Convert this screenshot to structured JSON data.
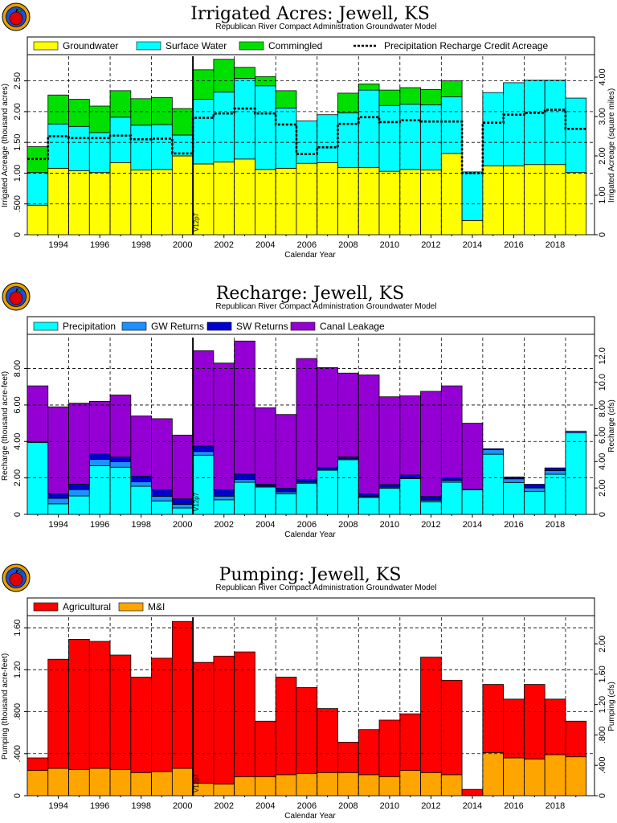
{
  "charts_common": {
    "subtitle": "Republican River Compact Administration Groundwater Model",
    "xlabel": "Calendar Year",
    "marker_label": "V12p7",
    "marker_year": 2000.5,
    "x_ticks": [
      1994,
      1996,
      1998,
      2000,
      2002,
      2004,
      2006,
      2008,
      2010,
      2012,
      2014,
      2016,
      2018
    ]
  },
  "chart_data": [
    {
      "type": "bar",
      "stacked": true,
      "title": "Irrigated Acres: Jewell, KS",
      "subtitle": "Republican River Compact Administration Groundwater Model",
      "xlabel": "Calendar Year",
      "ylabel": "Irrigated Acreage (thousand acres)",
      "ylabel_right": "Irrigated Acreage (square miles)",
      "ylim": [
        0,
        2.9
      ],
      "yticks": [
        0,
        0.5,
        1.0,
        1.5,
        2.0,
        2.5
      ],
      "ytick_labels": [
        "0",
        ".500",
        "1.00",
        "1.50",
        "2.00",
        "2.50"
      ],
      "y2lim": [
        0,
        4.53
      ],
      "y2ticks": [
        0,
        1,
        2,
        3,
        4
      ],
      "y2tick_labels": [
        "0",
        "1.00",
        "2.00",
        "3.00",
        "4.00"
      ],
      "grid": true,
      "legend_position": "top",
      "x": [
        1993,
        1994,
        1995,
        1996,
        1997,
        1998,
        1999,
        2000,
        2001,
        2002,
        2003,
        2004,
        2005,
        2006,
        2007,
        2008,
        2009,
        2010,
        2011,
        2012,
        2013,
        2014,
        2015,
        2016,
        2017,
        2018,
        2019
      ],
      "series": [
        {
          "name": "Groundwater",
          "color": "#ffff00",
          "values": [
            0.48,
            1.08,
            1.04,
            1.01,
            1.17,
            1.05,
            1.06,
            1.28,
            1.15,
            1.18,
            1.23,
            1.06,
            1.08,
            1.16,
            1.17,
            1.09,
            1.09,
            1.03,
            1.06,
            1.05,
            1.32,
            0.23,
            1.12,
            1.12,
            1.14,
            1.14,
            1.01
          ]
        },
        {
          "name": "Surface Water",
          "color": "#00ffff",
          "values": [
            0.53,
            0.72,
            0.72,
            0.65,
            0.74,
            0.73,
            0.73,
            0.34,
            1.05,
            1.14,
            1.31,
            1.36,
            0.98,
            0.69,
            0.78,
            0.89,
            1.26,
            1.07,
            1.06,
            1.06,
            0.92,
            0.79,
            1.19,
            1.35,
            1.37,
            1.37,
            1.21
          ]
        },
        {
          "name": "Commingled",
          "color": "#00e000",
          "values": [
            0.42,
            0.47,
            0.44,
            0.43,
            0.43,
            0.43,
            0.44,
            0.43,
            0.48,
            0.53,
            0.18,
            0.15,
            0.28,
            0,
            0,
            0.32,
            0.1,
            0.25,
            0.27,
            0.25,
            0.26,
            0,
            0,
            0,
            0,
            0,
            0
          ]
        }
      ],
      "line_series": [
        {
          "name": "Precipitation Recharge Credit Acreage",
          "style": "dotted",
          "values": [
            1.23,
            1.6,
            1.57,
            1.57,
            1.61,
            1.55,
            1.56,
            1.32,
            1.9,
            1.97,
            2.05,
            1.97,
            1.79,
            1.31,
            1.42,
            1.8,
            1.91,
            1.83,
            1.86,
            1.84,
            1.84,
            1.0,
            1.82,
            1.95,
            1.98,
            2.03,
            1.72
          ]
        }
      ]
    },
    {
      "type": "bar",
      "stacked": true,
      "title": "Recharge: Jewell, KS",
      "subtitle": "Republican River Compact Administration Groundwater Model",
      "xlabel": "Calendar Year",
      "ylabel": "Recharge (thousand acre-feet)",
      "ylabel_right": "Recharge (cfs)",
      "ylim": [
        0,
        9.7
      ],
      "yticks": [
        0,
        2,
        4,
        6,
        8
      ],
      "ytick_labels": [
        "0",
        "2.00",
        "4.00",
        "6.00",
        "8.00"
      ],
      "y2lim": [
        0,
        13.39
      ],
      "y2ticks": [
        0,
        2,
        4,
        6,
        8,
        10,
        12
      ],
      "y2tick_labels": [
        "0",
        "2.00",
        "4.00",
        "6.00",
        "8.00",
        "10.0",
        "12.0"
      ],
      "grid": true,
      "legend_position": "top",
      "x": [
        1993,
        1994,
        1995,
        1996,
        1997,
        1998,
        1999,
        2000,
        2001,
        2002,
        2003,
        2004,
        2005,
        2006,
        2007,
        2008,
        2009,
        2010,
        2011,
        2012,
        2013,
        2014,
        2015,
        2016,
        2017,
        2018,
        2019
      ],
      "series": [
        {
          "name": "Precipitation",
          "color": "#00ffff",
          "values": [
            3.95,
            0.58,
            1.01,
            2.67,
            2.59,
            1.54,
            0.74,
            0.35,
            3.25,
            0.8,
            1.76,
            1.5,
            1.13,
            1.71,
            2.42,
            3.0,
            0.93,
            1.44,
            1.96,
            0.68,
            1.76,
            1.35,
            3.3,
            1.75,
            1.25,
            2.2,
            4.47
          ]
        },
        {
          "name": "GW Returns",
          "color": "#1e90ff",
          "values": [
            0.05,
            0.3,
            0.35,
            0.35,
            0.3,
            0.25,
            0.25,
            0.2,
            0.2,
            0.2,
            0.15,
            0.05,
            0.1,
            0.05,
            0.05,
            0.05,
            0.05,
            0.05,
            0.05,
            0.1,
            0.1,
            0.02,
            0.25,
            0.2,
            0.2,
            0.2,
            0.1
          ]
        },
        {
          "name": "SW Returns",
          "color": "#0000d0",
          "values": [
            0,
            0.25,
            0.3,
            0.3,
            0.25,
            0.3,
            0.35,
            0.3,
            0.3,
            0.35,
            0.3,
            0.1,
            0.2,
            0.15,
            0.1,
            0.1,
            0.15,
            0.15,
            0.15,
            0.2,
            0.15,
            0,
            0.05,
            0.1,
            0.2,
            0.15,
            0
          ]
        },
        {
          "name": "Canal Leakage",
          "color": "#9400d3",
          "values": [
            3.05,
            4.77,
            4.44,
            2.88,
            3.41,
            3.31,
            3.91,
            3.5,
            5.23,
            6.95,
            7.3,
            4.2,
            4.05,
            6.64,
            5.48,
            4.6,
            6.52,
            4.81,
            4.34,
            5.77,
            5.04,
            3.63,
            0,
            0,
            0,
            0,
            0
          ]
        }
      ]
    },
    {
      "type": "bar",
      "stacked": true,
      "title": "Pumping: Jewell, KS",
      "subtitle": "Republican River Compact Administration Groundwater Model",
      "xlabel": "Calendar Year",
      "ylabel": "Pumping (thousand acre-feet)",
      "ylabel_right": "Pumping (cfs)",
      "ylim": [
        0,
        1.7
      ],
      "yticks": [
        0,
        0.4,
        0.8,
        1.2,
        1.6
      ],
      "ytick_labels": [
        "0",
        ".400",
        ".800",
        "1.20",
        "1.60"
      ],
      "y2lim": [
        0,
        2.35
      ],
      "y2ticks": [
        0,
        0.4,
        0.8,
        1.2,
        1.6,
        2.0
      ],
      "y2tick_labels": [
        "0",
        ".400",
        ".800",
        "1.20",
        "1.60",
        "2.00"
      ],
      "grid": true,
      "legend_position": "top",
      "x": [
        1993,
        1994,
        1995,
        1996,
        1997,
        1998,
        1999,
        2000,
        2001,
        2002,
        2003,
        2004,
        2005,
        2006,
        2007,
        2008,
        2009,
        2010,
        2011,
        2012,
        2013,
        2014,
        2015,
        2016,
        2017,
        2018,
        2019
      ],
      "series": [
        {
          "name": "M&I",
          "color": "#ffa500",
          "values": [
            0.24,
            0.26,
            0.25,
            0.26,
            0.25,
            0.22,
            0.23,
            0.26,
            0.12,
            0.11,
            0.18,
            0.18,
            0.2,
            0.21,
            0.22,
            0.22,
            0.2,
            0.18,
            0.24,
            0.22,
            0.2,
            0.0,
            0.41,
            0.36,
            0.35,
            0.39,
            0.37
          ]
        },
        {
          "name": "Agricultural",
          "color": "#ff0000",
          "values": [
            0.12,
            1.04,
            1.24,
            1.21,
            1.09,
            0.91,
            1.08,
            1.4,
            1.15,
            1.22,
            1.19,
            0.53,
            0.93,
            0.82,
            0.61,
            0.29,
            0.43,
            0.54,
            0.54,
            1.1,
            0.9,
            0.06,
            0.65,
            0.56,
            0.71,
            0.53,
            0.34
          ]
        }
      ]
    }
  ]
}
